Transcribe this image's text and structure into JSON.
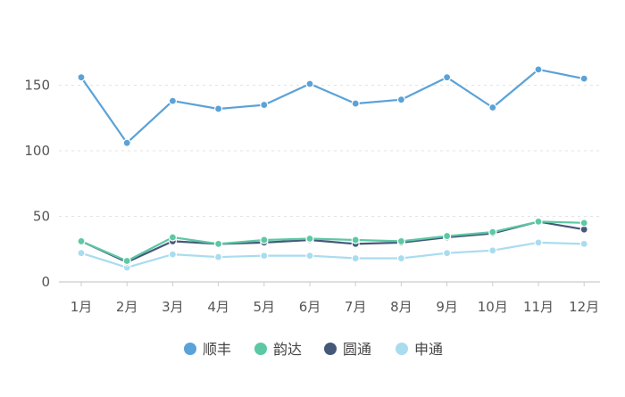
{
  "chart_data": {
    "type": "line",
    "title": "",
    "xlabel": "",
    "ylabel": "",
    "categories": [
      "1月",
      "2月",
      "3月",
      "4月",
      "5月",
      "6月",
      "7月",
      "8月",
      "9月",
      "10月",
      "11月",
      "12月"
    ],
    "y_ticks": [
      "0",
      "50",
      "100",
      "150"
    ],
    "ylim": [
      0,
      175
    ],
    "grid": "horizontal dashed",
    "legend_position": "bottom",
    "series": [
      {
        "name": "顺丰",
        "color": "#5aa2d8",
        "values": [
          156,
          106,
          138,
          132,
          135,
          151,
          136,
          139,
          156,
          133,
          162,
          155
        ]
      },
      {
        "name": "韵达",
        "color": "#5cc8a4",
        "values": [
          31,
          16,
          34,
          29,
          32,
          33,
          32,
          31,
          35,
          38,
          46,
          45
        ]
      },
      {
        "name": "圆通",
        "color": "#45587a",
        "values": [
          31,
          15,
          31,
          29,
          30,
          32,
          29,
          30,
          34,
          37,
          46,
          40
        ]
      },
      {
        "name": "申通",
        "color": "#a9dcef",
        "values": [
          22,
          11,
          21,
          19,
          20,
          20,
          18,
          18,
          22,
          24,
          30,
          29
        ]
      }
    ]
  }
}
